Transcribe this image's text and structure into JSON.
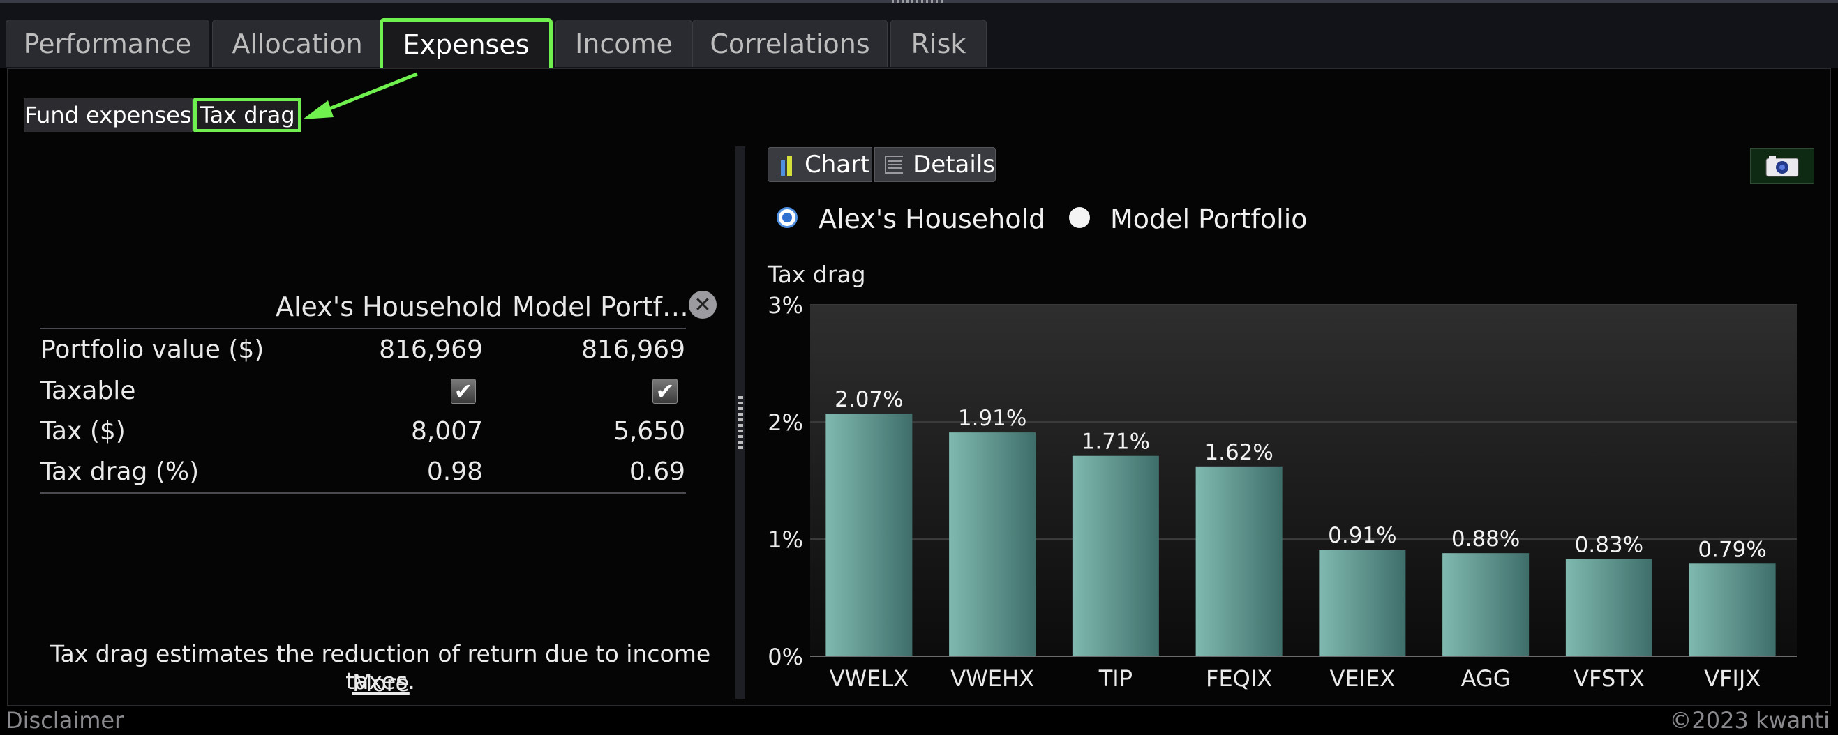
{
  "tabs": [
    {
      "label": "Performance"
    },
    {
      "label": "Allocation"
    },
    {
      "label": "Expenses"
    },
    {
      "label": "Income"
    },
    {
      "label": "Correlations"
    },
    {
      "label": "Risk"
    }
  ],
  "subtabs": {
    "fund_expenses": "Fund expenses",
    "tax_drag": "Tax drag"
  },
  "table": {
    "col1": "Alex's Household",
    "col2": "Model Portf…",
    "rows": [
      {
        "label": "Portfolio value ($)",
        "v1": "816,969",
        "v2": "816,969"
      },
      {
        "label": "Taxable",
        "v1": "✔",
        "v2": "✔"
      },
      {
        "label": "Tax ($)",
        "v1": "8,007",
        "v2": "5,650"
      },
      {
        "label": "Tax drag (%)",
        "v1": "0.98",
        "v2": "0.69"
      }
    ]
  },
  "note": "Tax drag estimates the reduction of return due to income taxes.",
  "more_link": "More",
  "view_buttons": {
    "chart": "Chart",
    "details": "Details"
  },
  "radios": {
    "option1": "Alex's Household",
    "option2": "Model Portfolio",
    "selected": "option1"
  },
  "icons": {
    "camera": "camera-icon",
    "chart": "bar-chart-icon",
    "details": "list-icon",
    "close": "close-icon"
  },
  "colors": {
    "accent_highlight": "#6ff04e",
    "bar": "#6aa9a0",
    "radio_selected": "#2e6fcf"
  },
  "chart_data": {
    "type": "bar",
    "ylabel": "Tax drag",
    "categories": [
      "VWELX",
      "VWEHX",
      "TIP",
      "FEQIX",
      "VEIEX",
      "AGG",
      "VFSTX",
      "VFIJX"
    ],
    "values": [
      2.07,
      1.91,
      1.71,
      1.62,
      0.91,
      0.88,
      0.83,
      0.79
    ],
    "value_labels": [
      "2.07%",
      "1.91%",
      "1.71%",
      "1.62%",
      "0.91%",
      "0.88%",
      "0.83%",
      "0.79%"
    ],
    "ylim": [
      0,
      3
    ],
    "yticks": [
      "0%",
      "1%",
      "2%",
      "3%"
    ],
    "grid": true
  },
  "footer": {
    "left": "Disclaimer",
    "right": "©2023 kwanti"
  }
}
